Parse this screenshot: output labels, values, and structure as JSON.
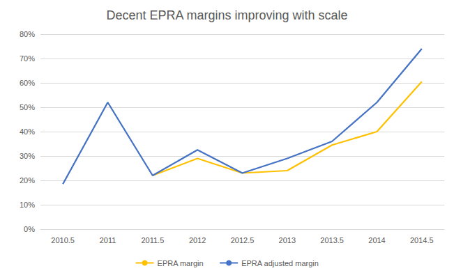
{
  "chart_data": {
    "type": "line",
    "title": "Decent EPRA margins improving with scale",
    "categories": [
      "2010.5",
      "2011",
      "2011.5",
      "2012",
      "2012.5",
      "2013",
      "2013.5",
      "2014",
      "2014.5"
    ],
    "series": [
      {
        "name": "EPRA margin",
        "color": "#ffc000",
        "values": [
          null,
          null,
          22,
          29,
          23,
          24,
          34.5,
          40,
          60.5
        ]
      },
      {
        "name": "EPRA adjusted margin",
        "color": "#4472c4",
        "values": [
          18.5,
          52,
          22,
          32.5,
          23,
          29,
          36,
          52,
          74
        ]
      }
    ],
    "ylim": [
      0,
      80
    ],
    "yticks": [
      {
        "value": 0,
        "label": "0%"
      },
      {
        "value": 10,
        "label": "10%"
      },
      {
        "value": 20,
        "label": "20%"
      },
      {
        "value": 30,
        "label": "30%"
      },
      {
        "value": 40,
        "label": "40%"
      },
      {
        "value": 50,
        "label": "50%"
      },
      {
        "value": 60,
        "label": "60%"
      },
      {
        "value": 70,
        "label": "70%"
      },
      {
        "value": 80,
        "label": "80%"
      }
    ],
    "grid": true,
    "legend": "bottom",
    "marker": "none",
    "line_style": "solid"
  }
}
